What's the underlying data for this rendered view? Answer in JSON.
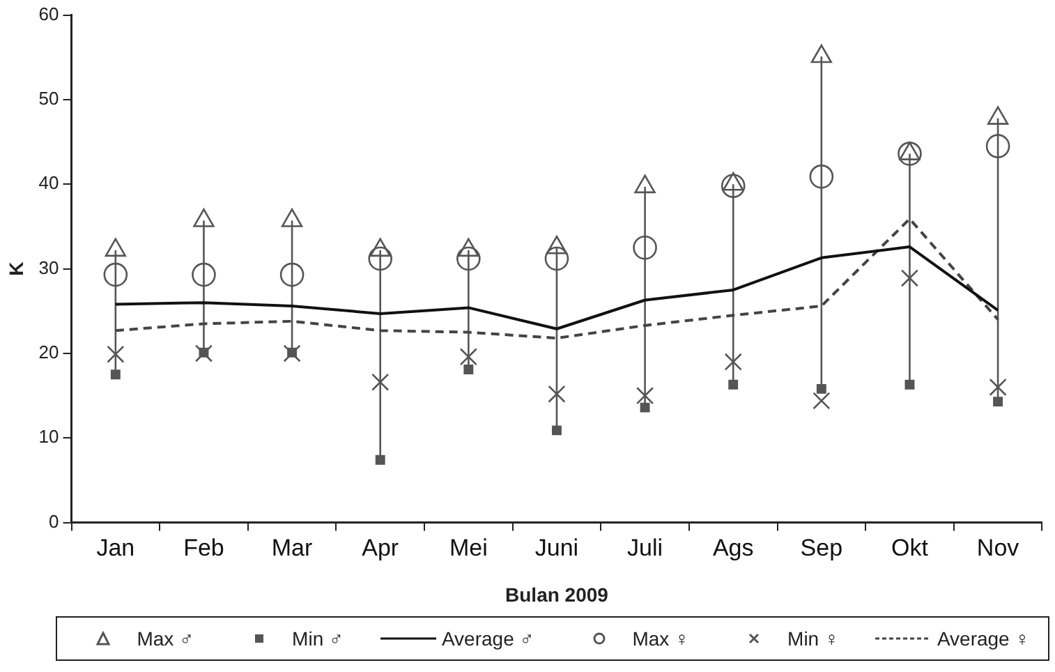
{
  "chart_data": {
    "type": "line",
    "xlabel": "Bulan 2009",
    "ylabel": "K",
    "categories": [
      "Jan",
      "Feb",
      "Mar",
      "Apr",
      "Mei",
      "Juni",
      "Juli",
      "Ags",
      "Sep",
      "Okt",
      "Nov"
    ],
    "ylim": [
      0,
      60
    ],
    "yticks": [
      0,
      10,
      20,
      30,
      40,
      50,
      60
    ],
    "grid": false,
    "legend": "bottom",
    "series": [
      {
        "name": "Max ♂",
        "type": "scatter",
        "marker": "triangle",
        "color": "#555555",
        "values": [
          32.2,
          35.7,
          35.7,
          32.2,
          32.2,
          32.5,
          39.7,
          40.0,
          55.1,
          43.6,
          47.8
        ]
      },
      {
        "name": "Min ♂",
        "type": "scatter",
        "marker": "square",
        "color": "#555555",
        "values": [
          17.5,
          20.1,
          20.1,
          7.4,
          18.1,
          10.9,
          13.6,
          16.3,
          15.8,
          16.3,
          14.3
        ]
      },
      {
        "name": "Average ♂",
        "type": "line",
        "marker": "none",
        "line_style": "solid",
        "color": "#111111",
        "values": [
          25.8,
          26.0,
          25.6,
          24.7,
          25.4,
          22.9,
          26.3,
          27.5,
          31.3,
          32.6,
          25.1
        ]
      },
      {
        "name": "Max ♀",
        "type": "scatter",
        "marker": "circle",
        "color": "#555555",
        "values": [
          29.3,
          29.3,
          29.3,
          31.2,
          31.2,
          31.2,
          32.5,
          39.8,
          40.9,
          43.6,
          44.5
        ]
      },
      {
        "name": "Min ♀",
        "type": "scatter",
        "marker": "cross",
        "color": "#555555",
        "values": [
          19.9,
          20.0,
          20.0,
          16.6,
          19.6,
          15.2,
          15.0,
          19.0,
          14.4,
          28.9,
          16.0
        ]
      },
      {
        "name": "Average ♀",
        "type": "line",
        "marker": "none",
        "line_style": "dashed",
        "color": "#444444",
        "values": [
          22.7,
          23.5,
          23.8,
          22.7,
          22.5,
          21.8,
          23.3,
          24.5,
          25.6,
          35.9,
          24.0
        ]
      }
    ]
  }
}
